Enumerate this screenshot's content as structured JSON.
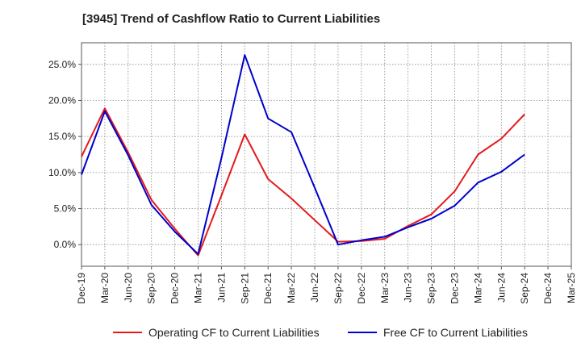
{
  "chart_data": {
    "type": "line",
    "title": "[3945]  Trend of Cashflow Ratio to Current Liabilities",
    "xlabel": "",
    "ylabel": "",
    "categories": [
      "Dec-19",
      "Mar-20",
      "Jun-20",
      "Sep-20",
      "Dec-20",
      "Mar-21",
      "Jun-21",
      "Sep-21",
      "Dec-21",
      "Mar-22",
      "Jun-22",
      "Sep-22",
      "Dec-22",
      "Mar-23",
      "Jun-23",
      "Sep-23",
      "Dec-23",
      "Mar-24",
      "Jun-24",
      "Sep-24",
      "Dec-24",
      "Mar-25"
    ],
    "y_ticks": [
      "0.0%",
      "5.0%",
      "10.0%",
      "15.0%",
      "20.0%",
      "25.0%"
    ],
    "ylim": [
      -3,
      28
    ],
    "grid": true,
    "legend_position": "bottom",
    "series": [
      {
        "name": "Operating CF to Current Liabilities",
        "color": "#e41a1c",
        "values": [
          12.2,
          18.9,
          12.8,
          6.2,
          2.2,
          -1.5,
          6.8,
          15.3,
          9.1,
          6.4,
          3.4,
          0.4,
          0.5,
          0.8,
          2.6,
          4.2,
          7.4,
          12.5,
          14.7,
          18.1,
          null,
          null
        ]
      },
      {
        "name": "Free CF to Current Liabilities",
        "color": "#0000cc",
        "values": [
          9.7,
          18.5,
          12.4,
          5.5,
          1.8,
          -1.3,
          12.0,
          26.3,
          17.5,
          15.6,
          7.9,
          0.0,
          0.6,
          1.1,
          2.4,
          3.6,
          5.4,
          8.6,
          10.1,
          12.5,
          null,
          null
        ]
      }
    ]
  }
}
